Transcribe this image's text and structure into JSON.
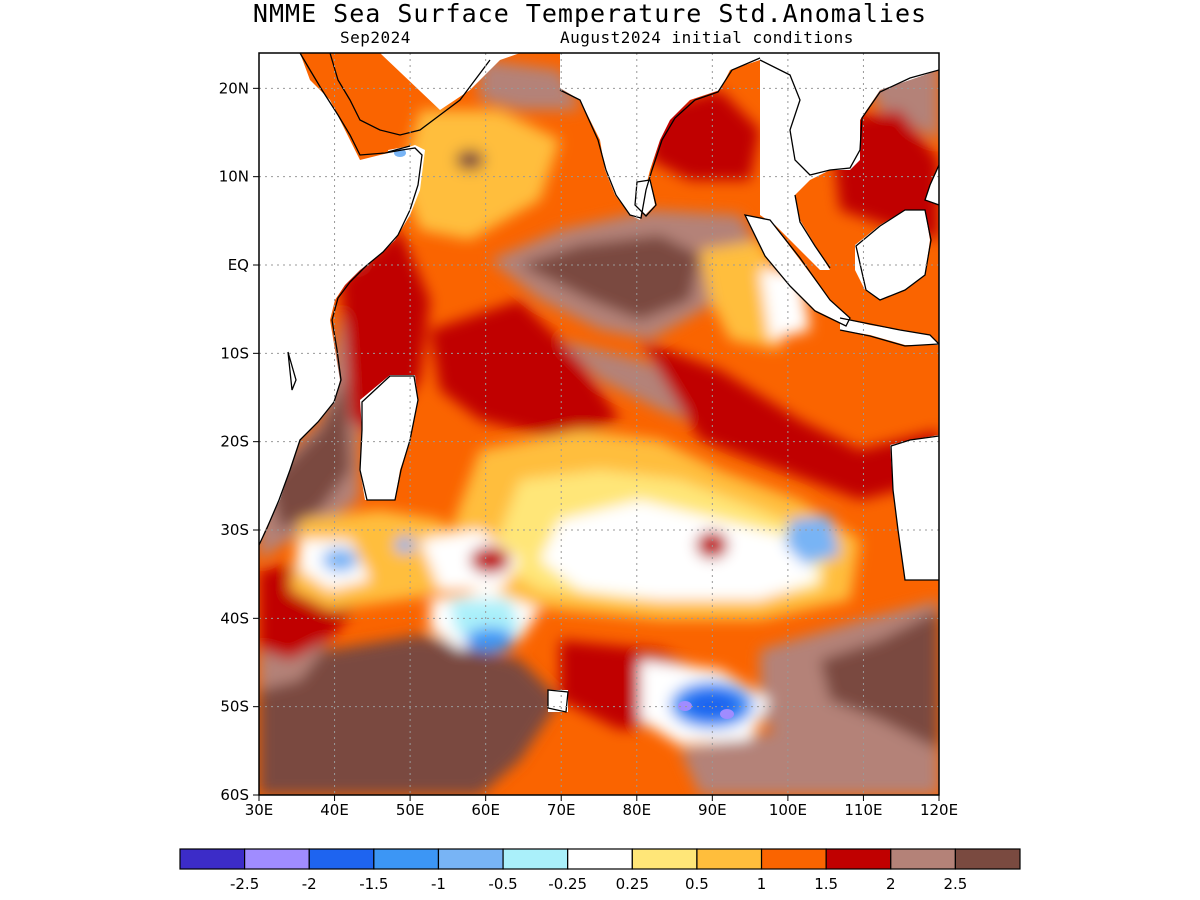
{
  "title": "NMME Sea Surface Temperature Std.Anomalies",
  "subtitle_left": "Sep2024",
  "subtitle_right": "August2024 initial conditions",
  "lat_labels": [
    "20N",
    "10N",
    "EQ",
    "10S",
    "20S",
    "30S",
    "40S",
    "50S",
    "60S"
  ],
  "lat_values": [
    20,
    10,
    0,
    -10,
    -20,
    -30,
    -40,
    -50,
    -60
  ],
  "lon_labels": [
    "30E",
    "40E",
    "50E",
    "60E",
    "70E",
    "80E",
    "90E",
    "100E",
    "110E",
    "120E"
  ],
  "lon_values": [
    30,
    40,
    50,
    60,
    70,
    80,
    90,
    100,
    110,
    120
  ],
  "extent": {
    "lon_min": 30,
    "lon_max": 120,
    "lat_min": -60,
    "lat_max": 24
  },
  "legend": {
    "colors": [
      "#3c2cc8",
      "#a08cff",
      "#1e64f0",
      "#3c96f5",
      "#78b4f5",
      "#aaf0fa",
      "#ffffff",
      "#ffe678",
      "#ffbe3c",
      "#fa6400",
      "#c00000",
      "#b48278",
      "#7a4a40"
    ],
    "tick_labels": [
      "-2.5",
      "-2",
      "-1.5",
      "-1",
      "-0.5",
      "-0.25",
      "0.25",
      "0.5",
      "1",
      "1.5",
      "2",
      "2.5"
    ]
  },
  "colors": {
    "land": "#ffffff",
    "coast": "#000000",
    "grid": "#999999"
  }
}
